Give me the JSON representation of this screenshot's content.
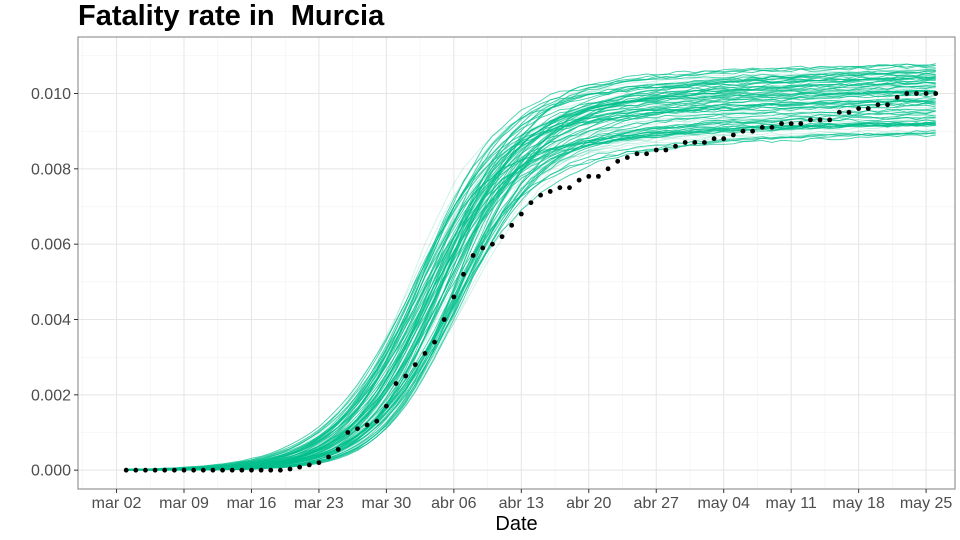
{
  "chart_data": {
    "type": "line",
    "title": "Fatality rate in  Murcia",
    "xlabel": "Date",
    "ylabel": "",
    "x_tick_labels": [
      "mar 02",
      "mar 09",
      "mar 16",
      "mar 23",
      "mar 30",
      "abr 06",
      "abr 13",
      "abr 20",
      "abr 27",
      "may 04",
      "may 11",
      "may 18",
      "may 25"
    ],
    "y_tick_labels": [
      "0.000",
      "0.002",
      "0.004",
      "0.006",
      "0.008",
      "0.010"
    ],
    "y_ticks": [
      0,
      0.002,
      0.004,
      0.006,
      0.008,
      0.01
    ],
    "xlim": [
      "2020-02-27",
      "2020-05-28"
    ],
    "ylim": [
      -0.0005,
      0.0115
    ],
    "grid": true,
    "series": [
      {
        "kind": "observed-points",
        "x_start": "2020-03-03",
        "x_step_days": 1,
        "values": [
          0,
          0,
          0,
          0,
          0,
          0,
          0,
          0,
          0,
          0,
          0,
          0,
          0,
          0,
          0,
          0,
          0,
          3e-05,
          8e-05,
          0.00014,
          0.0002,
          0.00035,
          0.00055,
          0.001,
          0.0011,
          0.0012,
          0.0013,
          0.0017,
          0.0023,
          0.0025,
          0.0028,
          0.0031,
          0.0034,
          0.004,
          0.0046,
          0.0052,
          0.0057,
          0.0059,
          0.006,
          0.0062,
          0.0065,
          0.0068,
          0.0071,
          0.0073,
          0.0074,
          0.0075,
          0.0075,
          0.0077,
          0.0078,
          0.0078,
          0.008,
          0.0082,
          0.0083,
          0.0084,
          0.0084,
          0.0085,
          0.0085,
          0.0086,
          0.0087,
          0.0087,
          0.0087,
          0.0088,
          0.0088,
          0.0089,
          0.009,
          0.009,
          0.0091,
          0.0091,
          0.0092,
          0.0092,
          0.0092,
          0.0093,
          0.0093,
          0.0093,
          0.0095,
          0.0095,
          0.0096,
          0.0096,
          0.0097,
          0.0097,
          0.0099,
          0.01,
          0.01,
          0.01,
          0.01
        ],
        "color": "#000000"
      }
    ],
    "simulated_curves": {
      "description_color": "#00BF8C",
      "count": 100,
      "x_start": "2020-03-03",
      "x_end": "2020-05-26",
      "final_value_range": [
        0.009,
        0.0109
      ],
      "midpoint_date_range": [
        "2020-04-01",
        "2020-04-07"
      ]
    },
    "colors": {
      "simulation": "#00BF8C",
      "points": "#000000",
      "panel_border": "#7f7f7f",
      "grid_major": "#e5e5e5",
      "grid_minor": "#f2f2f2"
    }
  }
}
